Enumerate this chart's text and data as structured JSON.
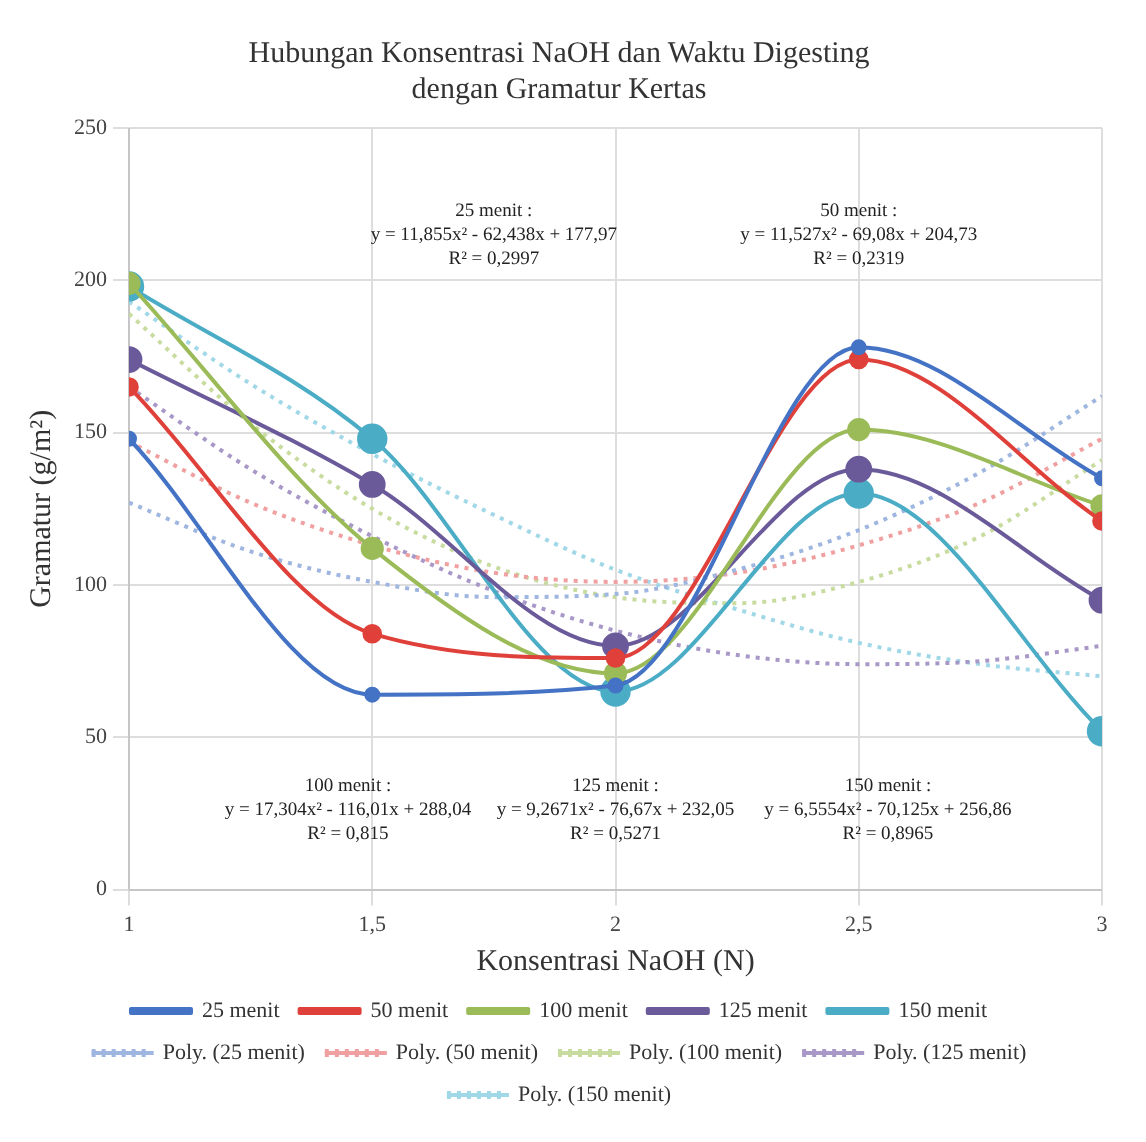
{
  "chart_data": {
    "type": "line",
    "title": "Hubungan Konsentrasi NaOH dan Waktu Digesting\ndengan Gramatur Kertas",
    "xlabel": "Konsentrasi NaOH (N)",
    "ylabel": "Gramatur (g/m²)",
    "x": [
      1,
      1.5,
      2,
      2.5,
      3
    ],
    "series": [
      {
        "name": "25 menit",
        "color": "#4472c4",
        "values": [
          148,
          64,
          67,
          178,
          135
        ]
      },
      {
        "name": "50 menit",
        "color": "#e0403a",
        "values": [
          165,
          84,
          76,
          174,
          121
        ]
      },
      {
        "name": "100 menit",
        "color": "#9bbb59",
        "values": [
          199,
          112,
          71,
          151,
          126
        ]
      },
      {
        "name": "125 menit",
        "color": "#6a5a9a",
        "values": [
          174,
          133,
          80,
          138,
          95
        ]
      },
      {
        "name": "150 menit",
        "color": "#4bacc6",
        "values": [
          198,
          148,
          65,
          130,
          52
        ]
      },
      {
        "name": "Poly. (25 menit)",
        "line_style": "dotted",
        "marker": "none",
        "color": "#9fb6e0",
        "x": [
          1,
          1.25,
          1.5,
          1.75,
          2,
          2.25,
          2.5,
          2.75,
          3
        ],
        "values": [
          127,
          111,
          101,
          96,
          97,
          105,
          118,
          137,
          162
        ]
      },
      {
        "name": "Poly. (50 menit)",
        "line_style": "dotted",
        "marker": "none",
        "color": "#f0a0a0",
        "x": [
          1,
          1.25,
          1.5,
          1.75,
          2,
          2.25,
          2.5,
          2.75,
          3
        ],
        "values": [
          147,
          127,
          113,
          104,
          101,
          104,
          113,
          127,
          148
        ]
      },
      {
        "name": "Poly. (100 menit)",
        "line_style": "dotted",
        "marker": "none",
        "color": "#c8dca0",
        "x": [
          1,
          1.25,
          1.5,
          1.75,
          2,
          2.25,
          2.5,
          2.75,
          3
        ],
        "values": [
          189,
          153,
          125,
          106,
          96,
          94,
          101,
          116,
          141
        ]
      },
      {
        "name": "Poly. (125 menit)",
        "line_style": "dotted",
        "marker": "none",
        "color": "#a898c8",
        "x": [
          1,
          1.25,
          1.5,
          1.75,
          2,
          2.25,
          2.5,
          2.75,
          3
        ],
        "values": [
          165,
          138,
          116,
          98,
          85,
          77,
          74,
          75,
          80
        ]
      },
      {
        "name": "Poly. (150 menit)",
        "line_style": "dotted",
        "marker": "none",
        "color": "#a0d8e8",
        "x": [
          1,
          1.25,
          1.5,
          1.75,
          2,
          2.25,
          2.5,
          2.75,
          3
        ],
        "values": [
          193,
          166,
          143,
          123,
          105,
          92,
          81,
          74,
          70
        ]
      }
    ],
    "xlim": [
      1,
      3
    ],
    "xticks": [
      1,
      {
        "value": 1.5,
        "label": "1,5"
      },
      2,
      {
        "value": 2.5,
        "label": "2,5"
      },
      3
    ],
    "ylim": [
      0,
      250
    ],
    "yticks": [
      0,
      50,
      100,
      150,
      200,
      250
    ],
    "grid": true,
    "legend": "bottom",
    "marker": "circle",
    "line_style": "solid",
    "annotations": [
      "25 menit :\ny = 11,855x² - 62,438x + 177,97\nR² = 0,2997",
      "50 menit :\ny = 11,527x² - 69,08x + 204,73\nR² = 0,2319",
      "100 menit :\ny = 17,304x² - 116,01x + 288,04\nR² = 0,815",
      "125 menit :\ny = 9,2671x² - 76,67x + 232,05\nR² = 0,5271",
      "150 menit :\ny = 6,5554x² - 70,125x + 256,86\nR² = 0,8965"
    ]
  }
}
